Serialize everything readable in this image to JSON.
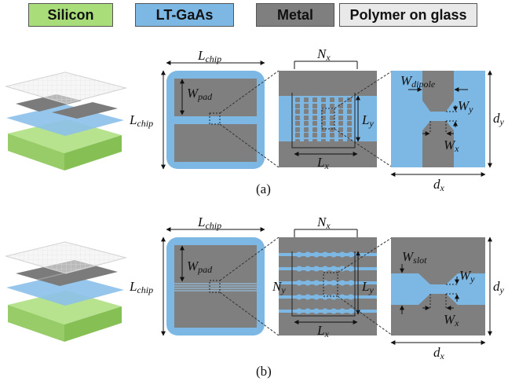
{
  "legend": [
    {
      "label": "Silicon",
      "color": "#a9dd7a"
    },
    {
      "label": "LT-GaAs",
      "color": "#7db7e4"
    },
    {
      "label": "Metal",
      "color": "#7f7f7f"
    },
    {
      "label": "Polymer on glass",
      "color": "#e9e9e9"
    }
  ],
  "labels": {
    "L_main": "L",
    "L_chip_sub": "chip",
    "W_main": "W",
    "W_pad_sub": "pad",
    "W_dipole_sub": "dipole",
    "W_slot_sub": "slot",
    "N_main": "N",
    "x_sub": "x",
    "y_sub": "y",
    "d_main": "d"
  },
  "captions": {
    "a": "(a)",
    "b": "(b)"
  },
  "colors": {
    "blue": "#7db7e4",
    "gray": "#7f7f7f",
    "green": "#a9dd7a",
    "glass": "#e9e9e9"
  }
}
